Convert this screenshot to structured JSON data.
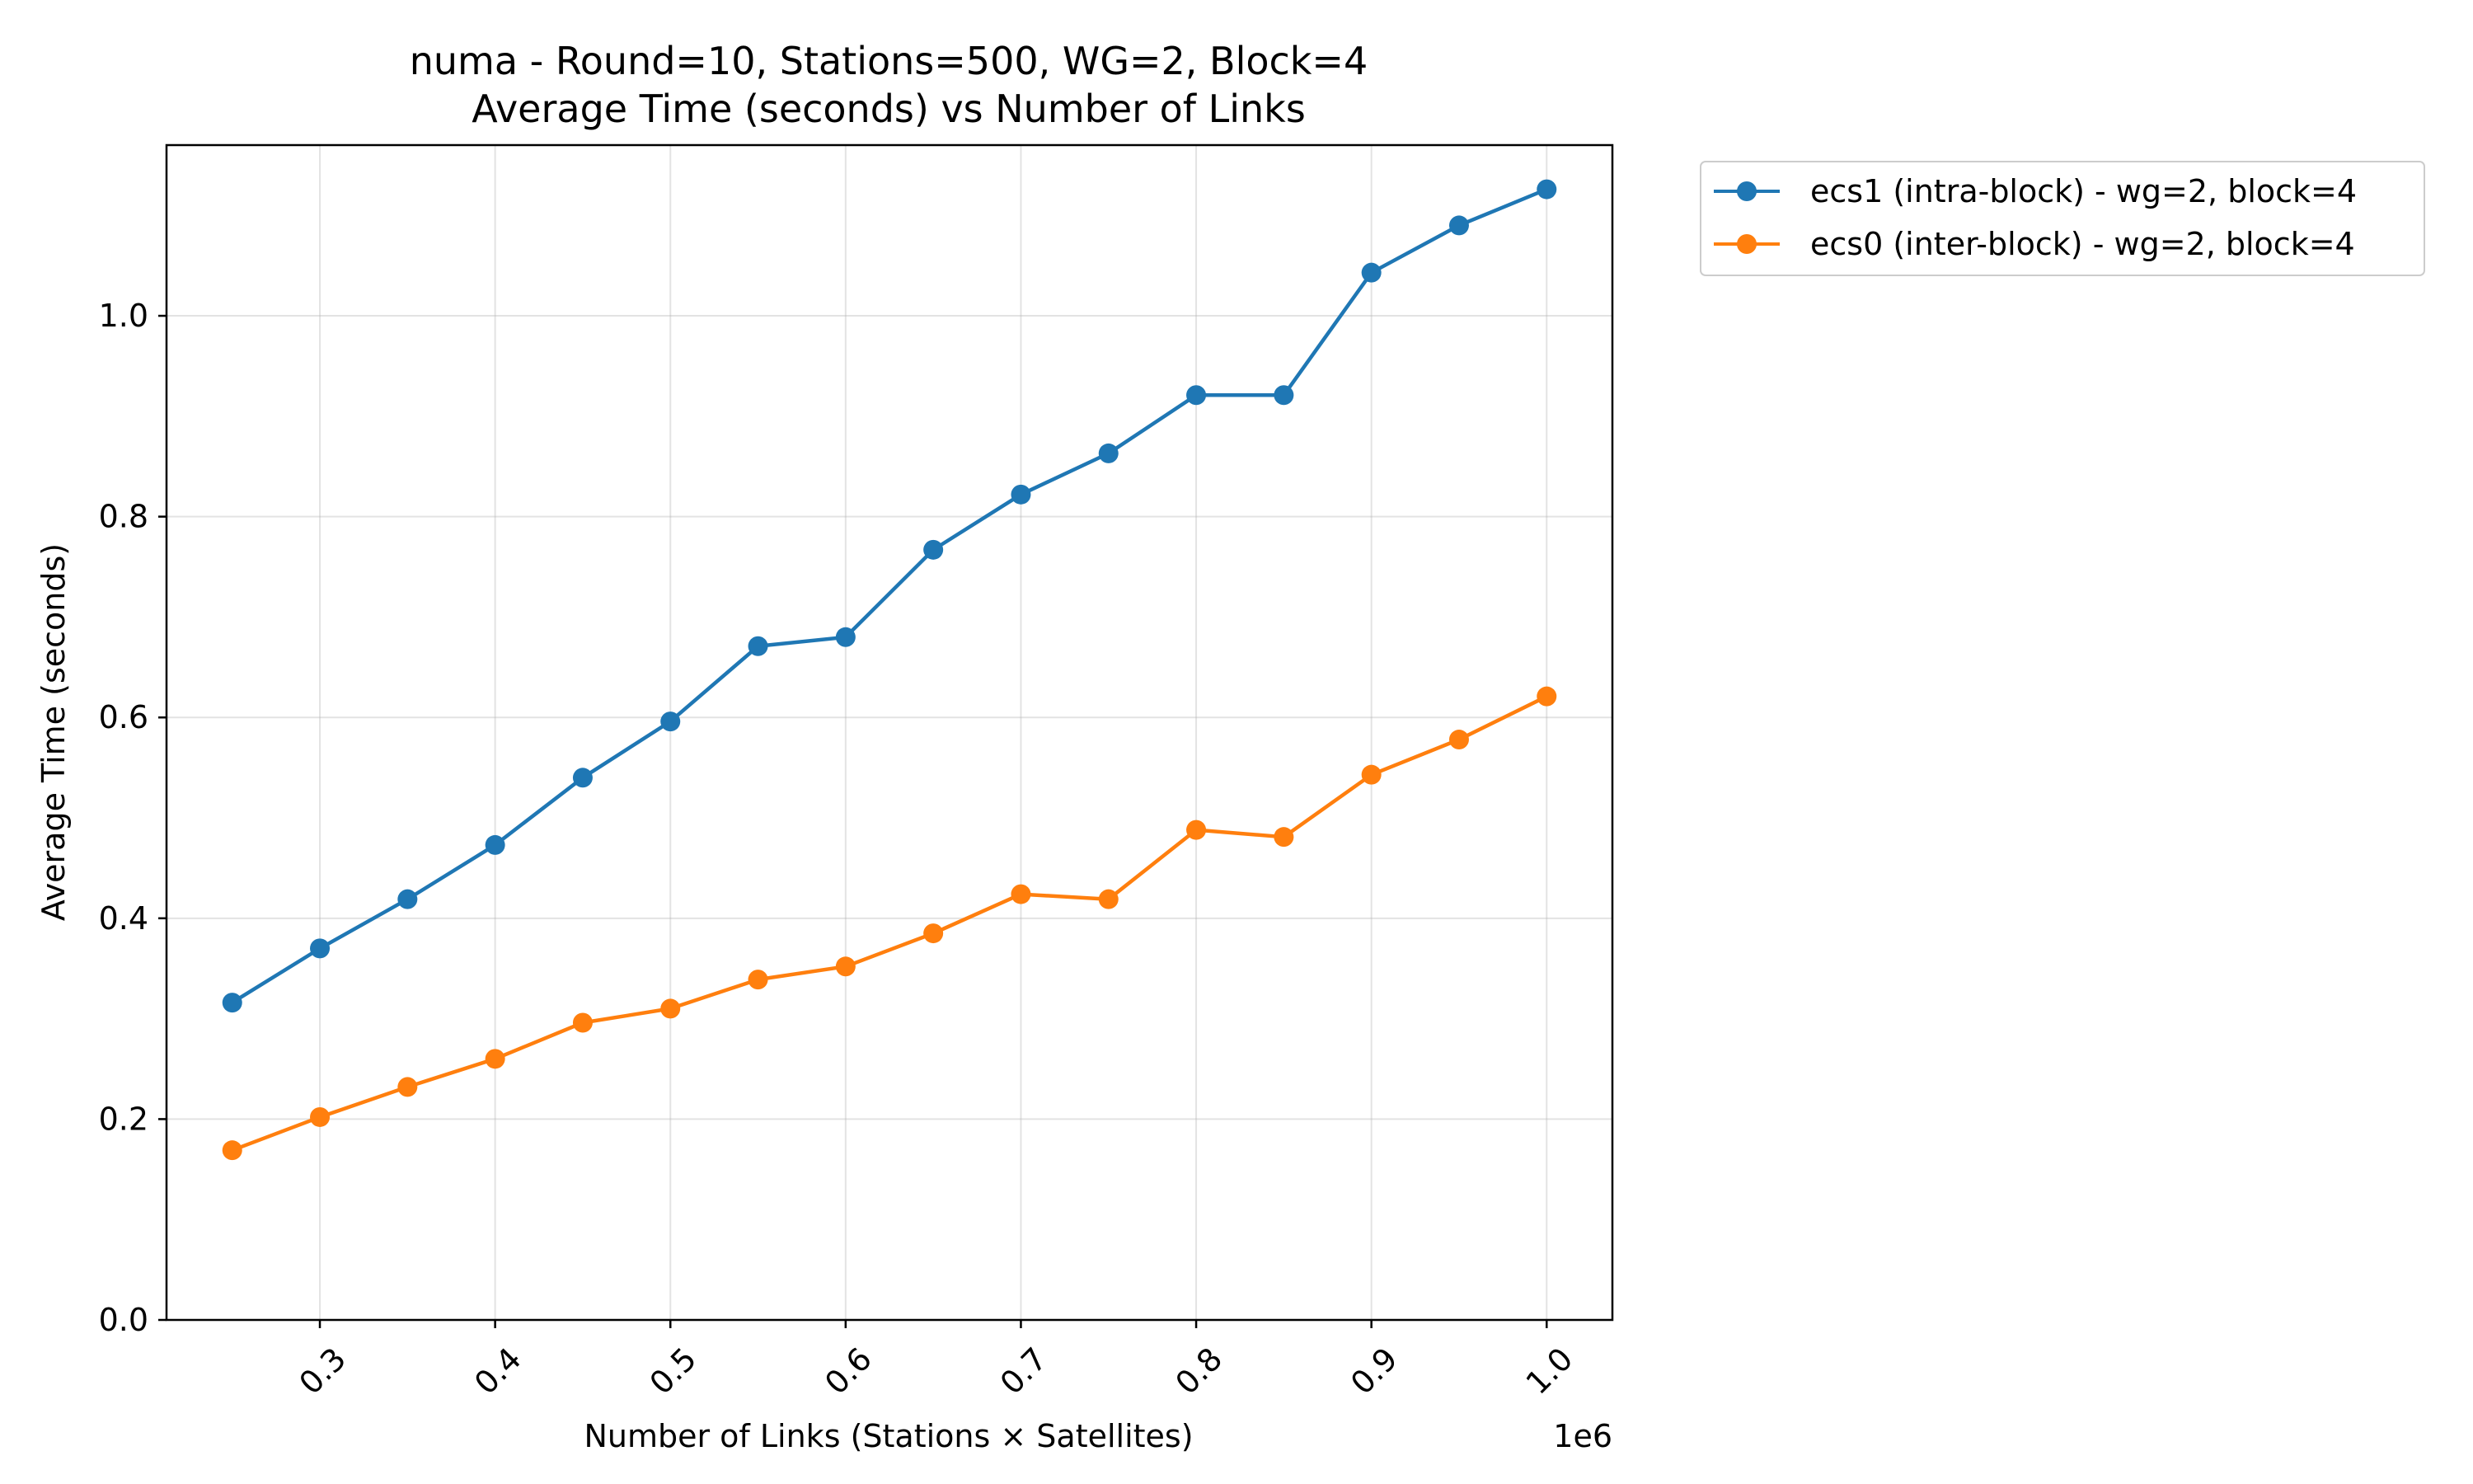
{
  "chart_data": {
    "type": "line",
    "title_line1": "numa - Round=10, Stations=500, WG=2, Block=4",
    "title_line2": "Average Time (seconds) vs Number of Links",
    "xlabel": "Number of Links (Stations × Satellites)",
    "ylabel": "Average Time (seconds)",
    "x_offset_label": "1e6",
    "x": [
      0.25,
      0.3,
      0.35,
      0.4,
      0.45,
      0.5,
      0.55,
      0.6,
      0.65,
      0.7,
      0.75,
      0.8,
      0.85,
      0.9,
      0.95,
      1.0
    ],
    "xlim": [
      0.2125,
      1.0375
    ],
    "ylim": [
      0.0,
      1.17
    ],
    "xticks": [
      "0.3",
      "0.4",
      "0.5",
      "0.6",
      "0.7",
      "0.8",
      "0.9",
      "1.0"
    ],
    "xtick_values": [
      0.3,
      0.4,
      0.5,
      0.6,
      0.7,
      0.8,
      0.9,
      1.0
    ],
    "yticks": [
      "0.0",
      "0.2",
      "0.4",
      "0.6",
      "0.8",
      "1.0"
    ],
    "ytick_values": [
      0.0,
      0.2,
      0.4,
      0.6,
      0.8,
      1.0
    ],
    "grid": true,
    "legend_position": "outside top-right",
    "series": [
      {
        "name": "ecs1 (intra-block) - wg=2, block=4",
        "color": "#1f77b4",
        "values": [
          0.316,
          0.37,
          0.419,
          0.473,
          0.54,
          0.596,
          0.671,
          0.68,
          0.767,
          0.822,
          0.863,
          0.921,
          0.921,
          1.043,
          1.09,
          1.126
        ]
      },
      {
        "name": "ecs0 (inter-block) - wg=2, block=4",
        "color": "#ff7f0e",
        "values": [
          0.169,
          0.202,
          0.232,
          0.26,
          0.296,
          0.31,
          0.339,
          0.352,
          0.385,
          0.424,
          0.419,
          0.488,
          0.481,
          0.543,
          0.578,
          0.621
        ]
      }
    ]
  }
}
